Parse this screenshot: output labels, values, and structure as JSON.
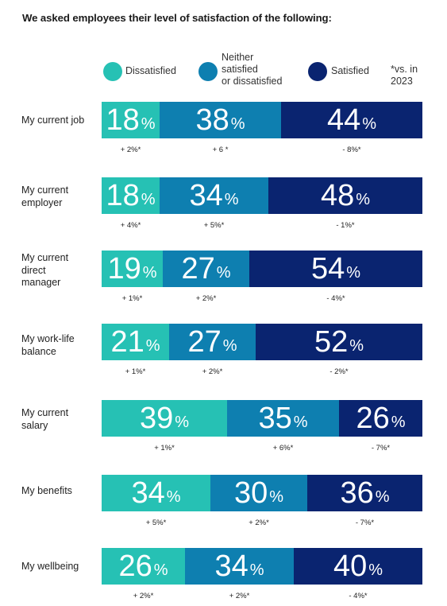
{
  "title": "We asked employees their level of satisfaction of the following:",
  "note": "*vs. in 2023",
  "colors": {
    "dissatisfied": "#26c1b4",
    "neutral": "#0e7fb0",
    "satisfied": "#0a2470"
  },
  "chart_data": {
    "type": "bar",
    "orientation": "horizontal",
    "stacked": true,
    "title": "We asked employees their level of satisfaction of the following:",
    "legend": [
      "Dissatisfied",
      "Neither satisfied or dissatisfied",
      "Satisfied"
    ],
    "legend_position": "top",
    "value_suffix": "%",
    "categories": [
      "My current job",
      "My current employer",
      "My current direct manager",
      "My work-life balance",
      "My current salary",
      "My benefits",
      "My wellbeing"
    ],
    "series": [
      {
        "name": "Dissatisfied",
        "color": "#26c1b4",
        "values": [
          18,
          18,
          19,
          21,
          39,
          34,
          26
        ],
        "change_labels": [
          "+ 2%*",
          "+ 4%*",
          "+ 1%*",
          "+ 1%*",
          "+ 1%*",
          "+ 5%*",
          "+ 2%*"
        ]
      },
      {
        "name": "Neither satisfied or dissatisfied",
        "color": "#0e7fb0",
        "values": [
          38,
          34,
          27,
          27,
          35,
          30,
          34
        ],
        "change_labels": [
          "+ 6 *",
          "+ 5%*",
          "+ 2%*",
          "+ 2%*",
          "+ 6%*",
          "+ 2%*",
          "+ 2%*"
        ]
      },
      {
        "name": "Satisfied",
        "color": "#0a2470",
        "values": [
          44,
          48,
          54,
          52,
          26,
          36,
          40
        ],
        "change_labels": [
          "- 8%*",
          "- 1%*",
          "- 4%*",
          "- 2%*",
          "- 7%*",
          "- 7%*",
          "- 4%*"
        ]
      }
    ],
    "row_labels": [
      [
        "My current job"
      ],
      [
        "My current",
        "employer"
      ],
      [
        "My current",
        "direct",
        "manager"
      ],
      [
        "My work-life",
        "balance"
      ],
      [
        "My current",
        "salary"
      ],
      [
        "My benefits"
      ],
      [
        "My wellbeing"
      ]
    ],
    "legend_labels": [
      [
        "Dissatisfied"
      ],
      [
        "Neither",
        "satisfied",
        "or dissatisfied"
      ],
      [
        "Satisfied"
      ]
    ],
    "note_lines": [
      "*vs. in",
      "2023"
    ]
  }
}
